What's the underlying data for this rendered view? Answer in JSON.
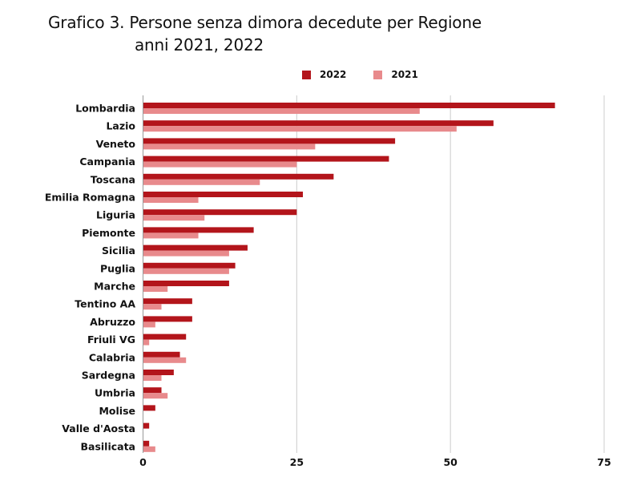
{
  "title": {
    "line1": "Grafico 3.  Persone senza dimora decedute per Regione",
    "line2": "anni 2021, 2022"
  },
  "chart_data": {
    "type": "bar",
    "orientation": "horizontal",
    "title": "Grafico 3.  Persone senza dimora decedute per Regione anni 2021, 2022",
    "categories": [
      "Lombardia",
      "Lazio",
      "Veneto",
      "Campania",
      "Toscana",
      "Emilia Romagna",
      "Liguria",
      "Piemonte",
      "Sicilia",
      "Puglia",
      "Marche",
      "Tentino AA",
      "Abruzzo",
      "Friuli VG",
      "Calabria",
      "Sardegna",
      "Umbria",
      "Molise",
      "Valle d'Aosta",
      "Basilicata"
    ],
    "series": [
      {
        "name": "2022",
        "color": "#b3151b",
        "values": [
          67,
          57,
          41,
          40,
          31,
          26,
          25,
          18,
          17,
          15,
          14,
          8,
          8,
          7,
          6,
          5,
          3,
          2,
          1,
          1
        ]
      },
      {
        "name": "2021",
        "color": "#e88a8c",
        "values": [
          45,
          51,
          28,
          25,
          19,
          9,
          10,
          9,
          14,
          14,
          4,
          3,
          2,
          1,
          7,
          3,
          4,
          0,
          0,
          2
        ]
      }
    ],
    "xlim": [
      0,
      75
    ],
    "xticks": [
      "0",
      "25",
      "50",
      "75"
    ],
    "xtick_values": [
      0,
      25,
      50,
      75
    ],
    "grid": true,
    "legend_position": "top"
  }
}
